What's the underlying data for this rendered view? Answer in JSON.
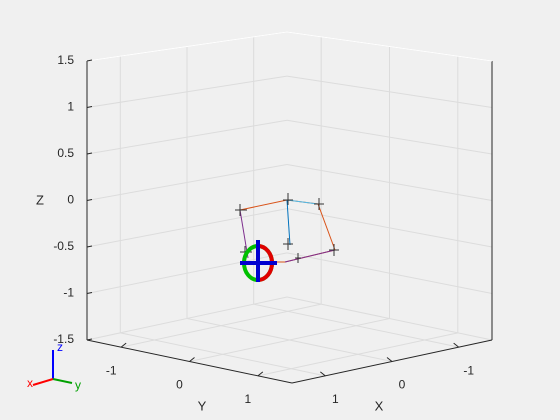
{
  "chart_data": {
    "type": "3d-axes",
    "xlabel": "X",
    "ylabel": "Y",
    "zlabel": "Z",
    "xlim": [
      -1.5,
      1.5
    ],
    "ylim": [
      -1.5,
      1.5
    ],
    "zlim": [
      -1.5,
      1.5
    ],
    "xticks": [
      -1,
      0,
      1
    ],
    "yticks": [
      -1,
      0,
      1
    ],
    "zticks": [
      -1.5,
      -1,
      -0.5,
      0,
      0.5,
      1,
      1.5
    ],
    "grid": true,
    "triad": {
      "x": "x",
      "y": "y",
      "z": "z"
    }
  }
}
